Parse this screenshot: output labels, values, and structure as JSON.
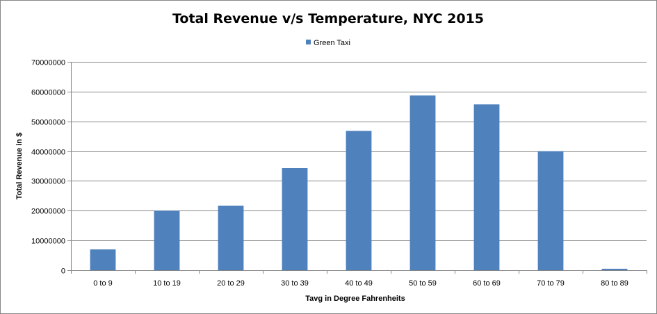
{
  "chart_data": {
    "type": "bar",
    "title": "Total Revenue v/s Temperature, NYC 2015",
    "xlabel": "Tavg  in Degree Fahrenheits",
    "ylabel": "Total Revenue in $",
    "categories": [
      "0 to 9",
      "10 to 19",
      "20 to 29",
      "30 to 39",
      "40 to 49",
      "50 to 59",
      "60 to 69",
      "70 to 79",
      "80 to 89"
    ],
    "series": [
      {
        "name": "Green Taxi",
        "color": "#4F81BD",
        "values": [
          7000000,
          20000000,
          21700000,
          34300000,
          46800000,
          58700000,
          55700000,
          40000000,
          500000
        ]
      }
    ],
    "ylim": [
      0,
      70000000
    ],
    "yticks": [
      "0",
      "10000000",
      "20000000",
      "30000000",
      "40000000",
      "50000000",
      "60000000",
      "70000000"
    ],
    "grid": true,
    "legend_position": "top"
  }
}
